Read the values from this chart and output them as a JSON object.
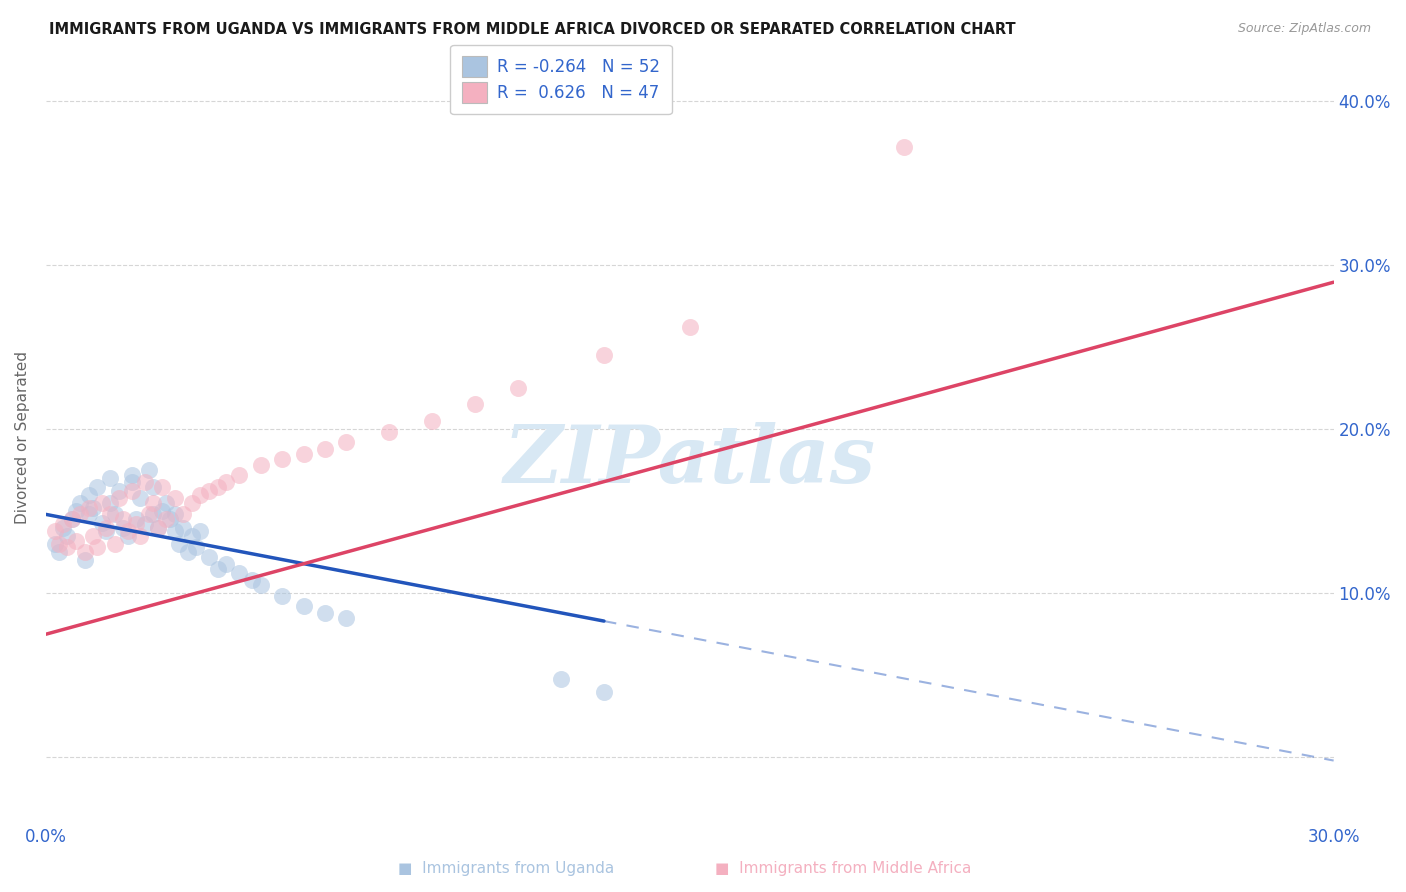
{
  "title": "IMMIGRANTS FROM UGANDA VS IMMIGRANTS FROM MIDDLE AFRICA DIVORCED OR SEPARATED CORRELATION CHART",
  "source": "Source: ZipAtlas.com",
  "ylabel": "Divorced or Separated",
  "legend_blue_r": "-0.264",
  "legend_blue_n": "52",
  "legend_pink_r": "0.626",
  "legend_pink_n": "47",
  "xlim": [
    0.0,
    0.3
  ],
  "ylim": [
    -0.04,
    0.43
  ],
  "yticks": [
    0.0,
    0.1,
    0.2,
    0.3,
    0.4
  ],
  "ytick_labels": [
    "",
    "10.0%",
    "20.0%",
    "30.0%",
    "40.0%"
  ],
  "xticks": [
    0.0,
    0.075,
    0.15,
    0.225,
    0.3
  ],
  "xtick_labels": [
    "0.0%",
    "",
    "",
    "",
    "30.0%"
  ],
  "watermark": "ZIPatlas",
  "blue_scatter_x": [
    0.002,
    0.003,
    0.004,
    0.005,
    0.006,
    0.007,
    0.008,
    0.009,
    0.01,
    0.01,
    0.011,
    0.012,
    0.013,
    0.014,
    0.015,
    0.015,
    0.016,
    0.017,
    0.018,
    0.019,
    0.02,
    0.02,
    0.021,
    0.022,
    0.023,
    0.024,
    0.025,
    0.025,
    0.026,
    0.027,
    0.028,
    0.029,
    0.03,
    0.03,
    0.031,
    0.032,
    0.033,
    0.034,
    0.035,
    0.036,
    0.038,
    0.04,
    0.042,
    0.045,
    0.048,
    0.05,
    0.055,
    0.06,
    0.065,
    0.07,
    0.12,
    0.13
  ],
  "blue_scatter_y": [
    0.13,
    0.125,
    0.14,
    0.135,
    0.145,
    0.15,
    0.155,
    0.12,
    0.148,
    0.16,
    0.152,
    0.165,
    0.143,
    0.138,
    0.17,
    0.155,
    0.148,
    0.162,
    0.14,
    0.135,
    0.172,
    0.168,
    0.145,
    0.158,
    0.142,
    0.175,
    0.148,
    0.165,
    0.14,
    0.15,
    0.155,
    0.145,
    0.138,
    0.148,
    0.13,
    0.14,
    0.125,
    0.135,
    0.128,
    0.138,
    0.122,
    0.115,
    0.118,
    0.112,
    0.108,
    0.105,
    0.098,
    0.092,
    0.088,
    0.085,
    0.048,
    0.04
  ],
  "pink_scatter_x": [
    0.002,
    0.003,
    0.004,
    0.005,
    0.006,
    0.007,
    0.008,
    0.009,
    0.01,
    0.011,
    0.012,
    0.013,
    0.014,
    0.015,
    0.016,
    0.017,
    0.018,
    0.019,
    0.02,
    0.021,
    0.022,
    0.023,
    0.024,
    0.025,
    0.026,
    0.027,
    0.028,
    0.03,
    0.032,
    0.034,
    0.036,
    0.038,
    0.04,
    0.042,
    0.045,
    0.05,
    0.055,
    0.06,
    0.065,
    0.07,
    0.08,
    0.09,
    0.1,
    0.11,
    0.13,
    0.15,
    0.2
  ],
  "pink_scatter_y": [
    0.138,
    0.13,
    0.142,
    0.128,
    0.145,
    0.132,
    0.148,
    0.125,
    0.152,
    0.135,
    0.128,
    0.155,
    0.14,
    0.148,
    0.13,
    0.158,
    0.145,
    0.138,
    0.162,
    0.142,
    0.135,
    0.168,
    0.148,
    0.155,
    0.14,
    0.165,
    0.145,
    0.158,
    0.148,
    0.155,
    0.16,
    0.162,
    0.165,
    0.168,
    0.172,
    0.178,
    0.182,
    0.185,
    0.188,
    0.192,
    0.198,
    0.205,
    0.215,
    0.225,
    0.245,
    0.262,
    0.372
  ],
  "blue_color": "#aac4e0",
  "pink_color": "#f4b0c0",
  "blue_line_color": "#2255bb",
  "pink_line_color": "#dd4466",
  "grid_color": "#cccccc",
  "bg_color": "#ffffff",
  "watermark_color": "#d8e8f4",
  "right_label_color": "#3366cc",
  "legend_box_color": "#aaaaaa",
  "bottom_label_color": "#888888",
  "blue_line_intercept": 0.148,
  "blue_line_slope": -0.5,
  "pink_line_intercept": 0.075,
  "pink_line_slope": 0.715
}
